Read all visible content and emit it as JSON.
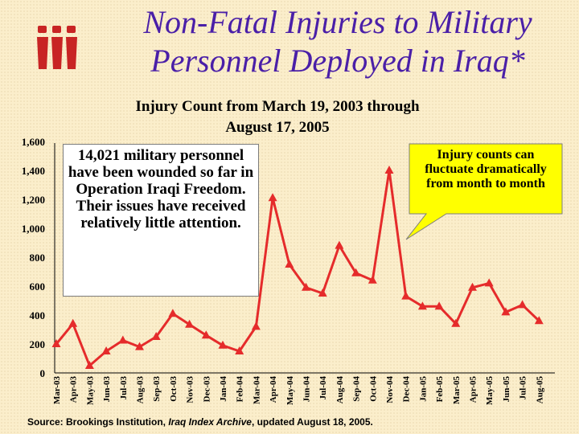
{
  "title": {
    "line1": "Non-Fatal Injuries to Military",
    "line2": "Personnel Deployed in Iraq*"
  },
  "colors": {
    "title": "#4a1fa8",
    "series": "#e52b2b",
    "logo": "#c82424",
    "callout": "#ffff00"
  },
  "logo": {
    "icon": "iii-logo-icon"
  },
  "textbox": {
    "text": "14,021 military personnel have been wounded so far in Operation Iraqi Freedom. Their issues have received relatively little attention."
  },
  "callout": {
    "text": "Injury counts can fluctuate dramatically from month to month"
  },
  "source": {
    "prefix": "Source: Brookings Institution, ",
    "italic": "Iraq Index Archive",
    "suffix": ", updated August 18, 2005."
  },
  "chart_data": {
    "type": "line",
    "title": "Injury Count from March 19, 2003 through August 17, 2005",
    "xlabel": "",
    "ylabel": "",
    "ylim": [
      0,
      1600
    ],
    "yticks": [
      0,
      200,
      400,
      600,
      800,
      1000,
      1200,
      1400,
      1600
    ],
    "ytick_labels": [
      "0",
      "200",
      "400",
      "600",
      "800",
      "1,000",
      "1,200",
      "1,400",
      "1,600"
    ],
    "grid": false,
    "categories": [
      "Mar-03",
      "Apr-03",
      "May-03",
      "Jun-03",
      "Jul-03",
      "Aug-03",
      "Sep-03",
      "Oct-03",
      "Nov-03",
      "Dec-03",
      "Jan-04",
      "Feb-04",
      "Mar-04",
      "Apr-04",
      "May-04",
      "Jun-04",
      "Jul-04",
      "Aug-04",
      "Sep-04",
      "Oct-04",
      "Nov-04",
      "Dec-04",
      "Jan-05",
      "Feb-05",
      "Mar-05",
      "Apr-05",
      "May-05",
      "Jun-05",
      "Jul-05",
      "Aug-05"
    ],
    "values": [
      200,
      340,
      50,
      150,
      225,
      180,
      250,
      410,
      335,
      260,
      190,
      150,
      320,
      1210,
      750,
      590,
      550,
      880,
      690,
      640,
      1400,
      530,
      460,
      460,
      340,
      590,
      620,
      420,
      470,
      360
    ]
  }
}
